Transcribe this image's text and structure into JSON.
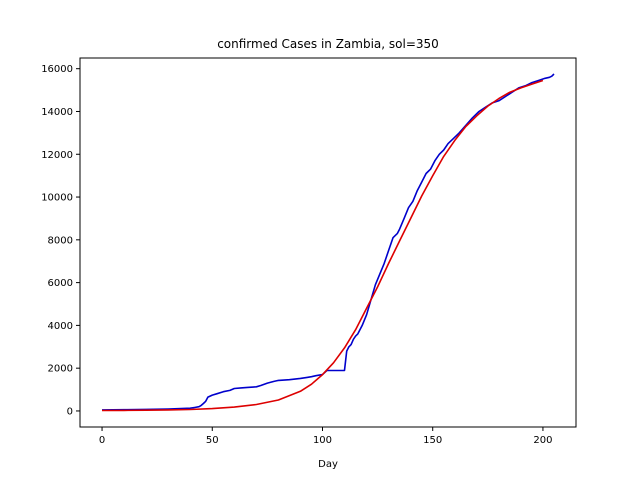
{
  "chart_data": {
    "type": "line",
    "title": "confirmed Cases in Zambia, sol=350",
    "xlabel": "Day",
    "ylabel": "",
    "xlim": [
      -10,
      215
    ],
    "ylim": [
      -750,
      16500
    ],
    "xticks": [
      0,
      50,
      100,
      150,
      200
    ],
    "yticks": [
      0,
      2000,
      4000,
      6000,
      8000,
      10000,
      12000,
      14000,
      16000
    ],
    "grid": false,
    "legend": "none",
    "series": [
      {
        "color": "#0000cc",
        "x": [
          0,
          10,
          20,
          30,
          40,
          42,
          44,
          45,
          46,
          47,
          48,
          50,
          52,
          55,
          58,
          60,
          63,
          66,
          70,
          72,
          75,
          78,
          80,
          85,
          90,
          93,
          95,
          97,
          100,
          102,
          105,
          108,
          110,
          111,
          112,
          113,
          114,
          115,
          116,
          118,
          120,
          122,
          124,
          126,
          128,
          130,
          132,
          134,
          135,
          137,
          139,
          141,
          143,
          145,
          147,
          149,
          151,
          153,
          155,
          157,
          159,
          162,
          165,
          168,
          171,
          174,
          177,
          180,
          183,
          186,
          189,
          192,
          195,
          198,
          201,
          203,
          204,
          205
        ],
        "y": [
          50,
          60,
          75,
          90,
          130,
          160,
          200,
          260,
          350,
          450,
          650,
          740,
          800,
          900,
          960,
          1050,
          1080,
          1100,
          1130,
          1190,
          1300,
          1380,
          1430,
          1460,
          1520,
          1570,
          1600,
          1650,
          1700,
          1890,
          1890,
          1890,
          1895,
          2800,
          3000,
          3100,
          3350,
          3500,
          3600,
          4000,
          4500,
          5200,
          5900,
          6400,
          6900,
          7500,
          8100,
          8300,
          8500,
          9000,
          9500,
          9800,
          10300,
          10700,
          11100,
          11300,
          11700,
          12000,
          12200,
          12500,
          12700,
          13000,
          13350,
          13700,
          14000,
          14200,
          14400,
          14500,
          14700,
          14900,
          15100,
          15200,
          15350,
          15450,
          15550,
          15600,
          15650,
          15750
        ]
      },
      {
        "color": "#dd0000",
        "x": [
          0,
          10,
          20,
          30,
          40,
          50,
          60,
          70,
          80,
          90,
          95,
          100,
          105,
          110,
          115,
          120,
          125,
          130,
          135,
          140,
          145,
          150,
          155,
          160,
          165,
          170,
          175,
          180,
          185,
          190,
          195,
          200
        ],
        "y": [
          20,
          25,
          35,
          50,
          70,
          110,
          180,
          300,
          510,
          920,
          1250,
          1700,
          2250,
          2950,
          3800,
          4800,
          5800,
          6900,
          7950,
          9000,
          10050,
          11000,
          11900,
          12650,
          13300,
          13800,
          14250,
          14600,
          14900,
          15100,
          15280,
          15450
        ]
      }
    ]
  }
}
